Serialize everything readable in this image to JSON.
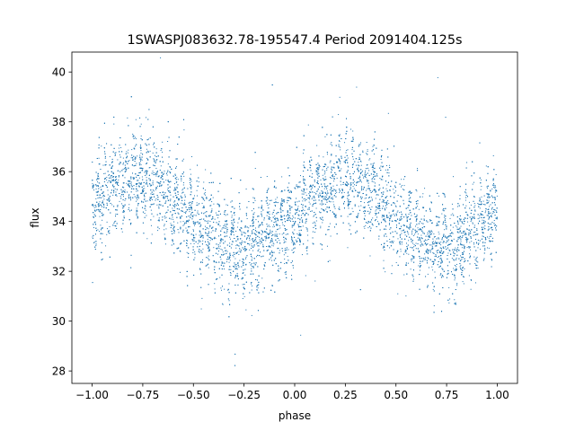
{
  "chart_data": {
    "type": "scatter",
    "title": "1SWASPJ083632.78-195547.4 Period 2091404.125s",
    "xlabel": "phase",
    "ylabel": "flux",
    "xlim": [
      -1.1,
      1.1
    ],
    "ylim": [
      27.5,
      40.8
    ],
    "xticks": [
      -1.0,
      -0.75,
      -0.5,
      -0.25,
      0.0,
      0.25,
      0.5,
      0.75,
      1.0
    ],
    "xtick_labels": [
      "−1.00",
      "−0.75",
      "−0.50",
      "−0.25",
      "0.00",
      "0.25",
      "0.50",
      "0.75",
      "1.00"
    ],
    "yticks": [
      28,
      30,
      32,
      34,
      36,
      38,
      40
    ],
    "ytick_labels": [
      "28",
      "30",
      "32",
      "34",
      "36",
      "38",
      "40"
    ],
    "grid": false,
    "point_color": "#1f77b4",
    "phase_trend": [
      [
        -1.0,
        34.6
      ],
      [
        -0.9,
        35.3
      ],
      [
        -0.8,
        35.8
      ],
      [
        -0.75,
        35.9
      ],
      [
        -0.7,
        35.6
      ],
      [
        -0.6,
        34.9
      ],
      [
        -0.5,
        34.1
      ],
      [
        -0.4,
        33.4
      ],
      [
        -0.3,
        33.0
      ],
      [
        -0.25,
        33.0
      ],
      [
        -0.2,
        33.1
      ],
      [
        -0.1,
        33.5
      ],
      [
        0.0,
        34.2
      ],
      [
        0.1,
        34.9
      ],
      [
        0.2,
        35.5
      ],
      [
        0.25,
        35.7
      ],
      [
        0.3,
        35.6
      ],
      [
        0.4,
        35.0
      ],
      [
        0.5,
        34.2
      ],
      [
        0.6,
        33.5
      ],
      [
        0.7,
        33.0
      ],
      [
        0.75,
        32.9
      ],
      [
        0.8,
        33.1
      ],
      [
        0.9,
        33.7
      ],
      [
        1.0,
        34.5
      ]
    ],
    "scatter_sd": 1.1,
    "n_points": 9000
  }
}
